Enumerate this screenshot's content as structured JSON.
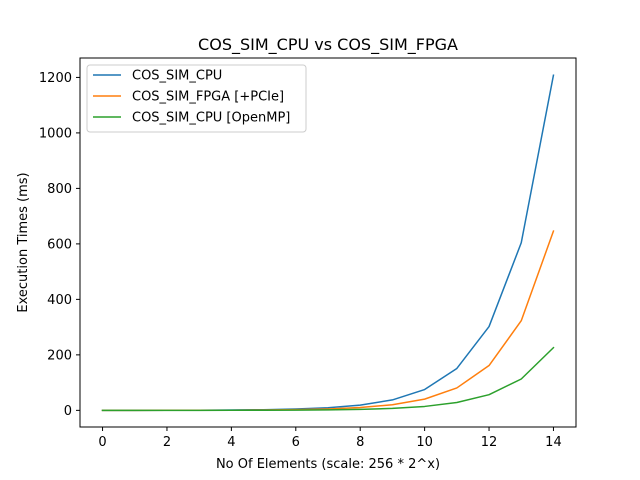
{
  "chart_data": {
    "type": "line",
    "title": "COS_SIM_CPU vs COS_SIM_FPGA",
    "xlabel": "No Of Elements (scale: 256 * 2^x)",
    "ylabel": "Execution Times (ms)",
    "xlim": [
      -0.7,
      14.7
    ],
    "ylim": [
      -60,
      1270
    ],
    "xticks": [
      0,
      2,
      4,
      6,
      8,
      10,
      12,
      14
    ],
    "yticks": [
      0,
      200,
      400,
      600,
      800,
      1000,
      1200
    ],
    "grid": false,
    "legend_position": "upper-left",
    "x": [
      0,
      1,
      2,
      3,
      4,
      5,
      6,
      7,
      8,
      9,
      10,
      11,
      12,
      13,
      14
    ],
    "series": [
      {
        "name": "COS_SIM_CPU",
        "color": "#1f77b4",
        "values": [
          0,
          0.1,
          0.3,
          0.6,
          1.2,
          2.4,
          4.7,
          9.4,
          18.8,
          37.6,
          75,
          151,
          302,
          604,
          1208
        ]
      },
      {
        "name": "COS_SIM_FPGA [+PCIe]",
        "color": "#ff7f0e",
        "values": [
          0,
          0.1,
          0.2,
          0.3,
          0.6,
          1.3,
          2.5,
          5.1,
          10.1,
          20.2,
          40.4,
          80.8,
          161.5,
          323,
          646
        ]
      },
      {
        "name": "COS_SIM_CPU [OpenMP]",
        "color": "#2ca02c",
        "values": [
          0,
          0,
          0.1,
          0.1,
          0.2,
          0.5,
          0.9,
          1.8,
          3.5,
          7.1,
          14.1,
          28.3,
          56.5,
          113,
          226
        ]
      }
    ]
  }
}
